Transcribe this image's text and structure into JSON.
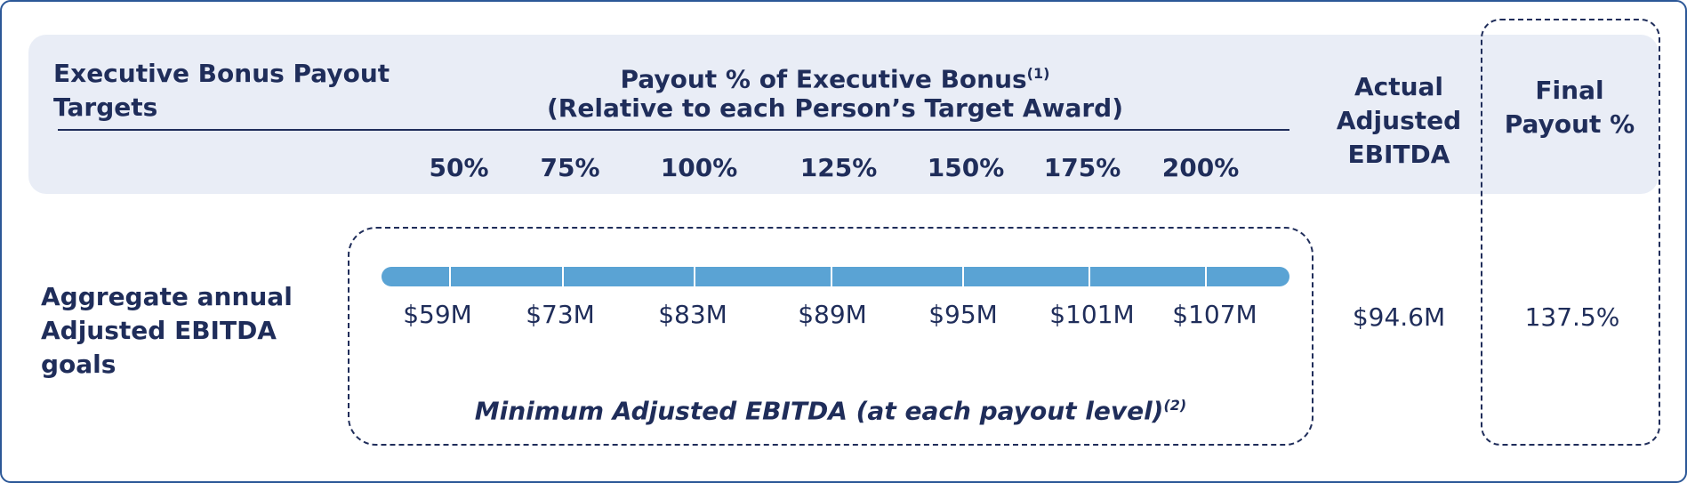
{
  "header": {
    "title": "Executive Bonus Payout Targets",
    "payout_heading": "Payout % of Executive Bonus",
    "payout_heading_note": "(1)",
    "payout_subheading": "(Relative to each Person’s Target Award)",
    "actual_heading": "Actual Adjusted EBITDA",
    "final_heading": "Final Payout %"
  },
  "payout_levels": [
    "50%",
    "75%",
    "100%",
    "125%",
    "150%",
    "175%",
    "200%"
  ],
  "row": {
    "label": "Aggregate annual Adjusted EBITDA goals",
    "ebitda_goals": [
      "$59M",
      "$73M",
      "$83M",
      "$89M",
      "$95M",
      "$101M",
      "$107M"
    ],
    "caption": "Minimum Adjusted EBITDA (at each payout level)",
    "caption_note": "(2)",
    "actual": "$94.6M",
    "final": "137.5%"
  }
}
